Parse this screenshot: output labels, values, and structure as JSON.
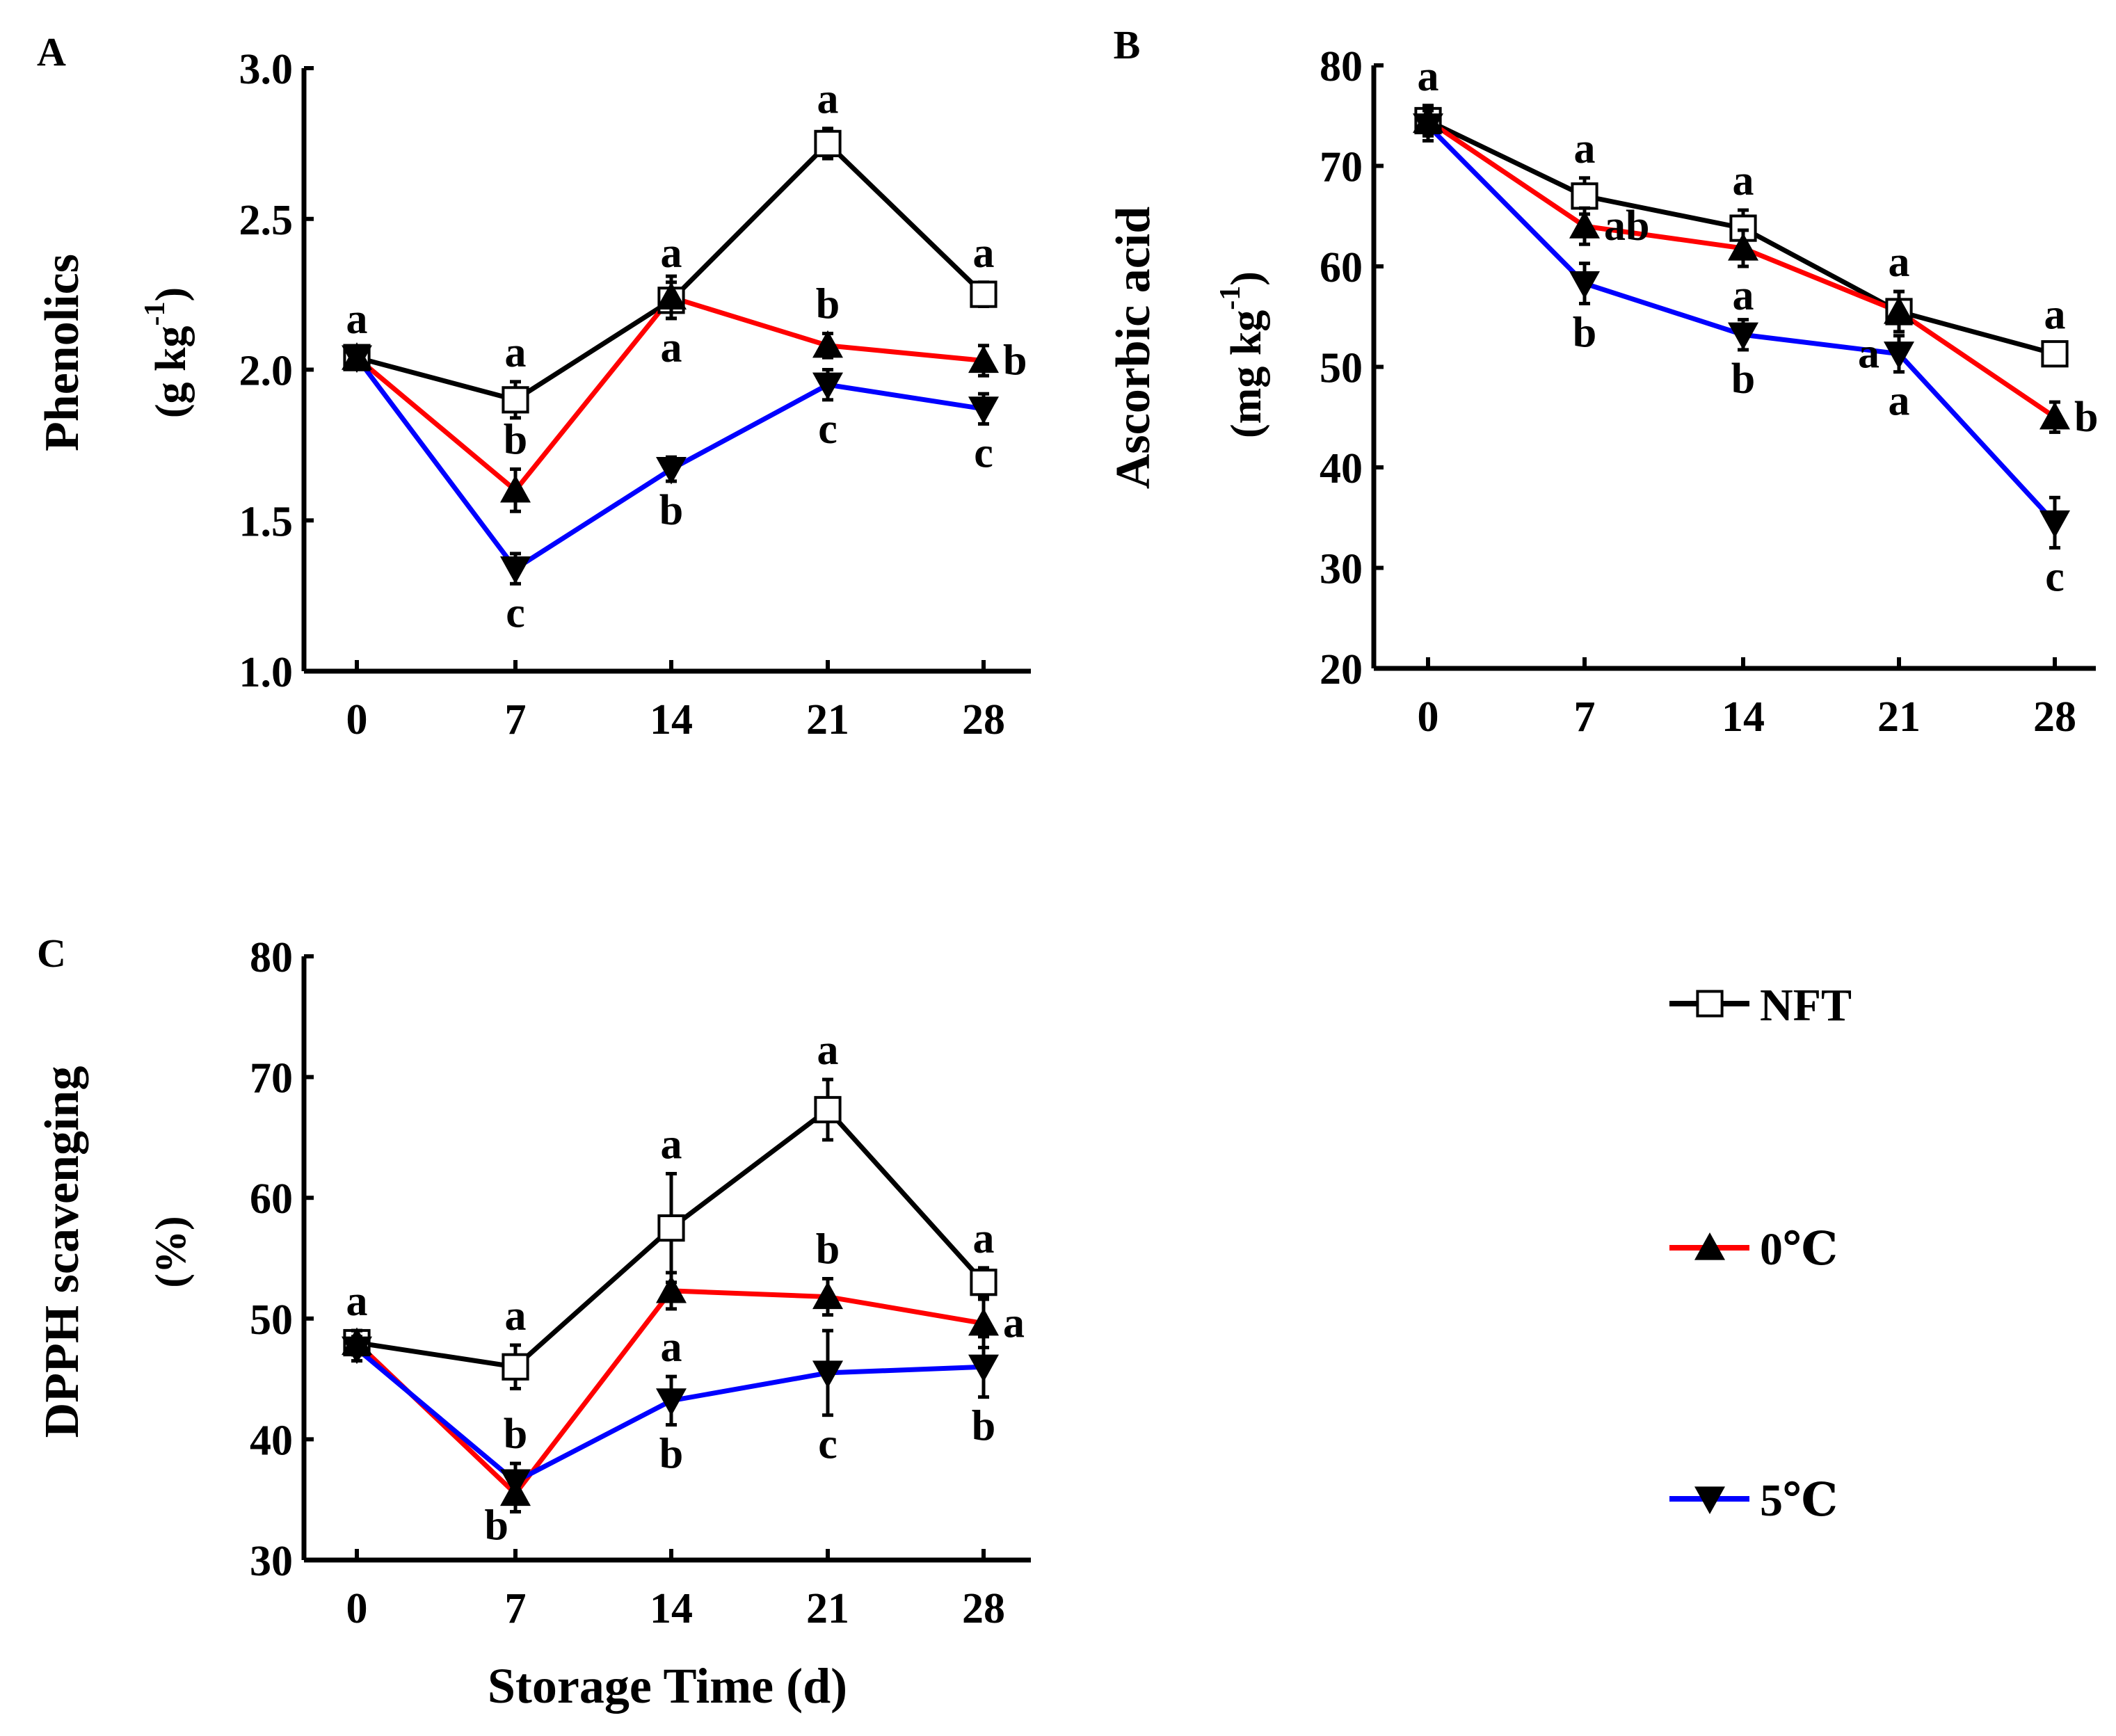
{
  "chart_data": [
    {
      "type": "line",
      "panel_label": "A",
      "ylabel": "Phenolics",
      "yunit": "(g  kg",
      "yunit_sup": "-1",
      "yunit_close": ")",
      "xlabel": "",
      "x": [
        0,
        7,
        14,
        21,
        28
      ],
      "xticks": [
        "0",
        "7",
        "14",
        "21",
        "28"
      ],
      "ylim": [
        1.0,
        3.0
      ],
      "yticks": [
        "1.0",
        "1.5",
        "2.0",
        "2.5",
        "3.0"
      ],
      "yticks_values": [
        1.0,
        1.5,
        2.0,
        2.5,
        3.0
      ],
      "series": [
        {
          "name": "NFT",
          "values": [
            2.04,
            1.9,
            2.23,
            2.75,
            2.25
          ],
          "errors": [
            0.03,
            0.06,
            0.06,
            0.05,
            0.04
          ]
        },
        {
          "name": "0℃",
          "values": [
            2.04,
            1.6,
            2.24,
            2.08,
            2.03
          ],
          "errors": [
            0.03,
            0.07,
            0.07,
            0.04,
            0.05
          ]
        },
        {
          "name": "5℃",
          "values": [
            2.04,
            1.34,
            1.67,
            1.95,
            1.87
          ],
          "errors": [
            0.03,
            0.05,
            0.04,
            0.05,
            0.05
          ]
        }
      ],
      "letters": [
        {
          "x": 0,
          "series": 0,
          "text": "a",
          "pos": "above"
        },
        {
          "x": 7,
          "series": 0,
          "text": "a",
          "pos": "above"
        },
        {
          "x": 7,
          "series": 1,
          "text": "b",
          "pos": "above"
        },
        {
          "x": 7,
          "series": 2,
          "text": "c",
          "pos": "below"
        },
        {
          "x": 14,
          "series": 0,
          "text": "a",
          "pos": "above"
        },
        {
          "x": 14,
          "series": 1,
          "text": "a",
          "pos": "below"
        },
        {
          "x": 14,
          "series": 2,
          "text": "b",
          "pos": "below"
        },
        {
          "x": 21,
          "series": 0,
          "text": "a",
          "pos": "above"
        },
        {
          "x": 21,
          "series": 1,
          "text": "b",
          "pos": "above"
        },
        {
          "x": 21,
          "series": 2,
          "text": "c",
          "pos": "below"
        },
        {
          "x": 28,
          "series": 0,
          "text": "a",
          "pos": "above"
        },
        {
          "x": 28,
          "series": 1,
          "text": "b",
          "pos": "right"
        },
        {
          "x": 28,
          "series": 2,
          "text": "c",
          "pos": "below"
        }
      ]
    },
    {
      "type": "line",
      "panel_label": "B",
      "ylabel": "Ascorbic acid",
      "yunit": "(mg  kg",
      "yunit_sup": "-1",
      "yunit_close": ")",
      "xlabel": "",
      "x": [
        0,
        7,
        14,
        21,
        28
      ],
      "xticks": [
        "0",
        "7",
        "14",
        "21",
        "28"
      ],
      "ylim": [
        20,
        80
      ],
      "yticks": [
        "20",
        "30",
        "40",
        "50",
        "60",
        "70",
        "80"
      ],
      "yticks_values": [
        20,
        30,
        40,
        50,
        60,
        70,
        80
      ],
      "series": [
        {
          "name": "NFT",
          "values": [
            74.5,
            67.0,
            63.8,
            55.5,
            51.3
          ],
          "errors": [
            1.5,
            1.8,
            1.8,
            2.0,
            1.0
          ]
        },
        {
          "name": "0℃",
          "values": [
            74.5,
            64.0,
            61.8,
            55.5,
            45.0
          ],
          "errors": [
            1.5,
            1.8,
            1.8,
            2.0,
            1.5
          ]
        },
        {
          "name": "5℃",
          "values": [
            74.0,
            58.3,
            53.2,
            51.3,
            34.5
          ],
          "errors": [
            1.5,
            2.0,
            1.5,
            1.8,
            2.5
          ]
        }
      ],
      "letters": [
        {
          "x": 0,
          "series": 0,
          "text": "a",
          "pos": "above"
        },
        {
          "x": 7,
          "series": 0,
          "text": "a",
          "pos": "above"
        },
        {
          "x": 7,
          "series": 1,
          "text": "ab",
          "pos": "right"
        },
        {
          "x": 7,
          "series": 2,
          "text": "b",
          "pos": "below"
        },
        {
          "x": 14,
          "series": 0,
          "text": "a",
          "pos": "above"
        },
        {
          "x": 14,
          "series": 1,
          "text": "a",
          "pos": "below"
        },
        {
          "x": 14,
          "series": 2,
          "text": "b",
          "pos": "below"
        },
        {
          "x": 21,
          "series": 0,
          "text": "a",
          "pos": "above"
        },
        {
          "x": 21,
          "series": 2,
          "text": "a",
          "pos": "left"
        },
        {
          "x": 21,
          "series": 2,
          "text": "a",
          "pos": "below"
        },
        {
          "x": 28,
          "series": 0,
          "text": "a",
          "pos": "above"
        },
        {
          "x": 28,
          "series": 1,
          "text": "b",
          "pos": "right"
        },
        {
          "x": 28,
          "series": 2,
          "text": "c",
          "pos": "below"
        }
      ]
    },
    {
      "type": "line",
      "panel_label": "C",
      "ylabel": "DPPH scavenging",
      "yunit": "(%)",
      "yunit_sup": "",
      "yunit_close": "",
      "xlabel": "Storage Time (d)",
      "x": [
        0,
        7,
        14,
        21,
        28
      ],
      "xticks": [
        "0",
        "7",
        "14",
        "21",
        "28"
      ],
      "ylim": [
        30,
        80
      ],
      "yticks": [
        "30",
        "40",
        "50",
        "60",
        "70",
        "80"
      ],
      "yticks_values": [
        30,
        40,
        50,
        60,
        70,
        80
      ],
      "series": [
        {
          "name": "NFT",
          "values": [
            48.0,
            46.0,
            57.5,
            67.3,
            53.0
          ],
          "errors": [
            1.0,
            1.8,
            4.5,
            2.5,
            1.2
          ]
        },
        {
          "name": "0℃",
          "values": [
            48.0,
            35.5,
            52.3,
            51.8,
            49.6
          ],
          "errors": [
            1.0,
            1.5,
            1.5,
            1.5,
            2.0
          ]
        },
        {
          "name": "5℃",
          "values": [
            47.5,
            36.5,
            43.2,
            45.5,
            46.0
          ],
          "errors": [
            1.0,
            1.5,
            2.0,
            3.5,
            2.5
          ]
        }
      ],
      "letters": [
        {
          "x": 0,
          "series": 0,
          "text": "a",
          "pos": "above"
        },
        {
          "x": 7,
          "series": 0,
          "text": "a",
          "pos": "above"
        },
        {
          "x": 7,
          "series": 2,
          "text": "b",
          "pos": "above"
        },
        {
          "x": 7,
          "series": 1,
          "text": "b",
          "pos": "below-left"
        },
        {
          "x": 14,
          "series": 0,
          "text": "a",
          "pos": "above"
        },
        {
          "x": 14,
          "series": 2,
          "text": "a",
          "pos": "above"
        },
        {
          "x": 14,
          "series": 2,
          "text": "b",
          "pos": "below"
        },
        {
          "x": 21,
          "series": 0,
          "text": "a",
          "pos": "above"
        },
        {
          "x": 21,
          "series": 1,
          "text": "b",
          "pos": "above"
        },
        {
          "x": 21,
          "series": 2,
          "text": "c",
          "pos": "below"
        },
        {
          "x": 28,
          "series": 0,
          "text": "a",
          "pos": "above"
        },
        {
          "x": 28,
          "series": 1,
          "text": "a",
          "pos": "right"
        },
        {
          "x": 28,
          "series": 2,
          "text": "b",
          "pos": "below"
        }
      ]
    }
  ],
  "legend": {
    "placement": "right",
    "items": [
      {
        "label": "NFT",
        "color": "#000000",
        "marker": "open-square"
      },
      {
        "label": "0℃",
        "color": "#ff0000",
        "marker": "filled-triangle-up"
      },
      {
        "label": "5℃",
        "color": "#0000ff",
        "marker": "filled-triangle-down"
      }
    ]
  }
}
